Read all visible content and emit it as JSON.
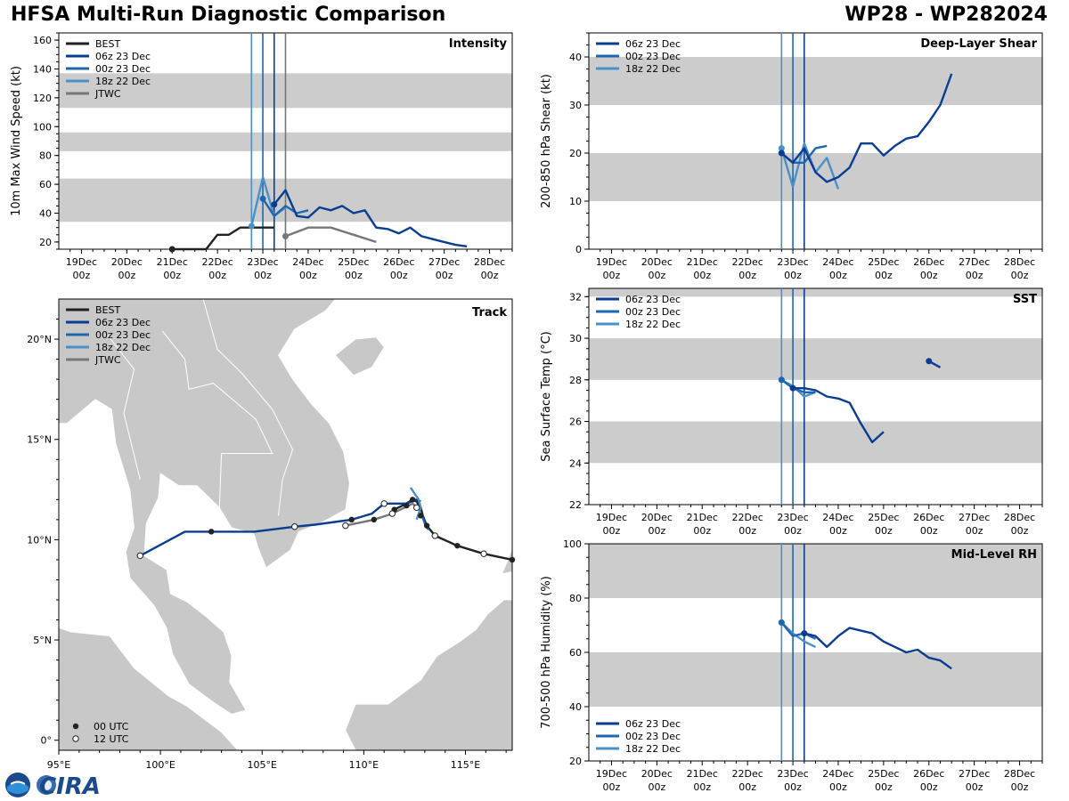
{
  "header": {
    "title": "HFSA Multi-Run Diagnostic Comparison",
    "storm_id": "WP28 - WP282024"
  },
  "colors": {
    "best": "#222222",
    "run_06z": "#0a3d91",
    "run_00z": "#1f66b0",
    "run_18z": "#4a90c8",
    "jtwc": "#777777",
    "band": "#cccccc",
    "land": "#c8c8c8"
  },
  "time_axis": {
    "day_labels": [
      "19Dec",
      "20Dec",
      "21Dec",
      "22Dec",
      "23Dec",
      "24Dec",
      "25Dec",
      "26Dec",
      "27Dec",
      "28Dec"
    ],
    "hour_label": "00z",
    "init_times": {
      "18z 22 Dec": 3.75,
      "00z 23 Dec": 4.0,
      "06z 23 Dec": 4.25,
      "JTWC": 4.5
    }
  },
  "logo": {
    "text": "CIRA",
    "agency": "NOAA"
  },
  "chart_data": [
    {
      "id": "intensity",
      "type": "line",
      "title": "Intensity",
      "ylabel": "10m Max Wind Speed (kt)",
      "xlabel": "",
      "xlim": [
        -0.5,
        9.5
      ],
      "ylim": [
        15,
        165
      ],
      "yticks": [
        20,
        40,
        60,
        80,
        100,
        120,
        140,
        160
      ],
      "bands": [
        [
          34,
          64
        ],
        [
          83,
          96
        ],
        [
          113,
          137
        ]
      ],
      "legend": [
        "BEST",
        "06z 23 Dec",
        "00z 23 Dec",
        "18z 22 Dec",
        "JTWC"
      ],
      "vlines": [
        3.75,
        4.0,
        4.25,
        4.5
      ],
      "series": [
        {
          "name": "BEST",
          "x": [
            2.0,
            2.25,
            2.5,
            2.75,
            3.0,
            3.25,
            3.5,
            3.75,
            4.0,
            4.25
          ],
          "y": [
            15,
            15,
            15,
            15,
            25,
            25,
            30,
            30,
            30,
            30
          ]
        },
        {
          "name": "JTWC",
          "x": [
            4.5,
            5.0,
            5.5,
            6.0,
            6.5
          ],
          "y": [
            24,
            30,
            30,
            25,
            20
          ]
        },
        {
          "name": "18z 22 Dec",
          "x": [
            3.75,
            4.0,
            4.25,
            4.5
          ],
          "y": [
            31,
            65,
            38,
            44
          ]
        },
        {
          "name": "00z 23 Dec",
          "x": [
            4.0,
            4.25,
            4.5,
            4.75,
            5.0
          ],
          "y": [
            50,
            38,
            45,
            40,
            42
          ]
        },
        {
          "name": "06z 23 Dec",
          "x": [
            4.25,
            4.5,
            4.75,
            5.0,
            5.25,
            5.5,
            5.75,
            6.0,
            6.25,
            6.5,
            6.75,
            7.0,
            7.25,
            7.5,
            7.75,
            8.0,
            8.25,
            8.5
          ],
          "y": [
            46,
            56,
            38,
            37,
            44,
            42,
            45,
            40,
            42,
            30,
            29,
            26,
            30,
            24,
            22,
            20,
            18,
            17
          ]
        }
      ]
    },
    {
      "id": "shear",
      "type": "line",
      "title": "Deep-Layer Shear",
      "ylabel": "200-850 hPa Shear (kt)",
      "xlabel": "",
      "xlim": [
        -0.5,
        9.5
      ],
      "ylim": [
        0,
        45
      ],
      "yticks": [
        0,
        10,
        20,
        30,
        40
      ],
      "bands": [
        [
          10,
          20
        ],
        [
          30,
          40
        ]
      ],
      "legend": [
        "06z 23 Dec",
        "00z 23 Dec",
        "18z 22 Dec"
      ],
      "vlines": [
        3.75,
        4.0,
        4.25
      ],
      "series": [
        {
          "name": "18z 22 Dec",
          "x": [
            3.75,
            4.0,
            4.25,
            4.5,
            4.75,
            5.0
          ],
          "y": [
            21,
            13,
            22,
            16,
            19,
            12.5
          ]
        },
        {
          "name": "00z 23 Dec",
          "x": [
            3.75,
            4.0,
            4.25,
            4.5,
            4.75
          ],
          "y": [
            20,
            18,
            18,
            21,
            21.5
          ]
        },
        {
          "name": "06z 23 Dec",
          "x": [
            3.75,
            4.0,
            4.25,
            4.5,
            4.75,
            5.0,
            5.25,
            5.5,
            5.75,
            6.0,
            6.25,
            6.5,
            6.75,
            7.0,
            7.25,
            7.5
          ],
          "y": [
            20,
            18,
            21,
            16,
            14,
            15,
            17,
            22,
            22,
            19.5,
            21.5,
            23,
            23.5,
            26.5,
            30,
            36.5
          ]
        }
      ]
    },
    {
      "id": "sst",
      "type": "line",
      "title": "SST",
      "ylabel": "Sea Surface Temp (°C)",
      "xlabel": "",
      "xlim": [
        -0.5,
        9.5
      ],
      "ylim": [
        22,
        32.4
      ],
      "yticks": [
        22,
        24,
        26,
        28,
        30,
        32
      ],
      "bands": [
        [
          24,
          26
        ],
        [
          28,
          30
        ],
        [
          32,
          32.4
        ]
      ],
      "legend": [
        "06z 23 Dec",
        "00z 23 Dec",
        "18z 22 Dec"
      ],
      "vlines": [
        3.75,
        4.0,
        4.25
      ],
      "series": [
        {
          "name": "18z 22 Dec",
          "x": [
            3.75,
            4.0,
            4.25,
            4.5
          ],
          "y": [
            28.0,
            27.7,
            27.2,
            27.4
          ]
        },
        {
          "name": "00z 23 Dec",
          "x": [
            3.75,
            4.0,
            4.25,
            4.5
          ],
          "y": [
            28.0,
            27.6,
            27.4,
            27.4
          ]
        },
        {
          "name": "06z 23 Dec",
          "x": [
            4.0,
            4.25,
            4.5,
            4.75,
            5.0,
            5.25,
            5.5,
            5.75,
            6.0
          ],
          "y": [
            27.6,
            27.6,
            27.5,
            27.2,
            27.1,
            26.9,
            25.9,
            25.0,
            25.5
          ]
        },
        {
          "name": "06z 23 Dec",
          "x": [
            7.0,
            7.25
          ],
          "y": [
            28.9,
            28.6
          ]
        }
      ]
    },
    {
      "id": "rh",
      "type": "line",
      "title": "Mid-Level RH",
      "ylabel": "700-500 hPa Humidity (%)",
      "xlabel": "",
      "xlim": [
        -0.5,
        9.5
      ],
      "ylim": [
        20,
        100
      ],
      "yticks": [
        20,
        40,
        60,
        80,
        100
      ],
      "bands": [
        [
          40,
          60
        ],
        [
          80,
          100
        ]
      ],
      "legend": [
        "06z 23 Dec",
        "00z 23 Dec",
        "18z 22 Dec"
      ],
      "vlines": [
        3.75,
        4.0,
        4.25
      ],
      "series": [
        {
          "name": "18z 22 Dec",
          "x": [
            3.75,
            4.0,
            4.25,
            4.5
          ],
          "y": [
            71,
            67,
            64,
            62
          ]
        },
        {
          "name": "00z 23 Dec",
          "x": [
            3.75,
            4.0,
            4.25,
            4.5
          ],
          "y": [
            71,
            66,
            67,
            65
          ]
        },
        {
          "name": "06z 23 Dec",
          "x": [
            4.25,
            4.5,
            4.75,
            5.0,
            5.25,
            5.5,
            5.75,
            6.0,
            6.25,
            6.5,
            6.75,
            7.0,
            7.25,
            7.5
          ],
          "y": [
            67,
            66,
            62,
            66,
            69,
            68,
            67,
            64,
            62,
            60,
            61,
            58,
            57,
            54
          ]
        }
      ]
    },
    {
      "id": "track",
      "type": "scatter",
      "title": "Track",
      "xlabel": "",
      "ylabel": "",
      "xlim": [
        95,
        117.3
      ],
      "ylim": [
        -0.5,
        22
      ],
      "xticks": [
        95,
        100,
        105,
        110,
        115
      ],
      "xtick_labels": [
        "95°E",
        "100°E",
        "105°E",
        "110°E",
        "115°E"
      ],
      "yticks": [
        0,
        5,
        10,
        15,
        20
      ],
      "ytick_labels": [
        "0°",
        "5°N",
        "10°N",
        "15°N",
        "20°N"
      ],
      "legend": [
        "BEST",
        "06z 23 Dec",
        "00z 23 Dec",
        "18z 22 Dec",
        "JTWC"
      ],
      "marker_legend": [
        "00 UTC",
        "12 UTC"
      ],
      "series": [
        {
          "name": "BEST",
          "lon": [
            117.3,
            115.9,
            114.6,
            113.5,
            113.1,
            112.9,
            112.8,
            112.6,
            112.4,
            112.1,
            111.5
          ],
          "lat": [
            9.0,
            9.3,
            9.7,
            10.2,
            10.7,
            11.2,
            11.6,
            11.9,
            12.0,
            11.8,
            11.5
          ]
        },
        {
          "name": "JTWC",
          "lon": [
            112.6,
            112.4,
            111.4,
            110.5,
            109.1
          ],
          "lat": [
            11.6,
            11.8,
            11.3,
            11.0,
            10.7
          ]
        },
        {
          "name": "06z 23 Dec",
          "lon": [
            112.8,
            112.6,
            112.1,
            111.0,
            110.4,
            109.4,
            107.6,
            106.6,
            104.6,
            102.5,
            101.2,
            99.0
          ],
          "lat": [
            11.9,
            12.0,
            11.8,
            11.8,
            11.3,
            11.0,
            10.75,
            10.65,
            10.4,
            10.4,
            10.4,
            9.2
          ]
        },
        {
          "name": "00z 23 Dec",
          "lon": [
            112.7,
            112.9,
            113.0,
            113.1,
            113.2
          ],
          "lat": [
            11.3,
            11.1,
            10.8,
            10.6,
            10.5
          ]
        },
        {
          "name": "18z 22 Dec",
          "lon": [
            112.6,
            112.8,
            112.7,
            112.5,
            112.3
          ],
          "lat": [
            11.0,
            11.6,
            12.0,
            12.3,
            12.6
          ]
        }
      ],
      "points_00utc": [
        [
          117.3,
          9.0
        ],
        [
          114.6,
          9.7
        ],
        [
          113.1,
          10.7
        ],
        [
          112.8,
          11.2
        ],
        [
          112.4,
          12.0
        ],
        [
          112.1,
          11.7
        ],
        [
          111.5,
          11.5
        ],
        [
          110.5,
          11.0
        ],
        [
          109.4,
          11.0
        ],
        [
          102.5,
          10.4
        ]
      ],
      "points_12utc": [
        [
          115.9,
          9.3
        ],
        [
          113.5,
          10.2
        ],
        [
          112.6,
          11.6
        ],
        [
          111.4,
          11.3
        ],
        [
          111.0,
          11.8
        ],
        [
          109.1,
          10.7
        ],
        [
          106.6,
          10.65
        ],
        [
          99.0,
          9.2
        ]
      ]
    }
  ]
}
